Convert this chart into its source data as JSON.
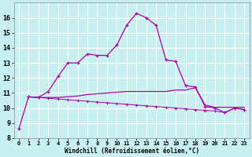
{
  "xlabel": "Windchill (Refroidissement éolien,°C)",
  "xlim": [
    -0.5,
    23.5
  ],
  "ylim": [
    8,
    17
  ],
  "background_color": "#c8f0f0",
  "line_color": "#aa00aa",
  "grid_color": "#aadddd",
  "series1_x": [
    0,
    1,
    2,
    3,
    4,
    5,
    6,
    7,
    8,
    9,
    10,
    11,
    12,
    13,
    14,
    15,
    16,
    17,
    18,
    19,
    20,
    21,
    22,
    23
  ],
  "series1_y": [
    8.6,
    10.75,
    10.7,
    11.1,
    12.1,
    13.0,
    13.0,
    13.6,
    13.5,
    13.5,
    14.2,
    15.5,
    16.3,
    16.0,
    15.5,
    13.2,
    13.1,
    11.5,
    11.4,
    10.1,
    10.0,
    9.7,
    10.0,
    9.9
  ],
  "series2_x": [
    1,
    2,
    3,
    4,
    5,
    6,
    7,
    8,
    9,
    10,
    11,
    12,
    13,
    14,
    15,
    16,
    17,
    18,
    19,
    20,
    21,
    22,
    23
  ],
  "series2_y": [
    10.75,
    10.7,
    10.7,
    10.7,
    10.75,
    10.8,
    10.9,
    10.95,
    11.0,
    11.05,
    11.1,
    11.1,
    11.1,
    11.1,
    11.1,
    11.2,
    11.2,
    11.35,
    10.2,
    10.05,
    10.05,
    10.05,
    10.05
  ],
  "series3_x": [
    1,
    2,
    3,
    4,
    5,
    6,
    7,
    8,
    9,
    10,
    11,
    12,
    13,
    14,
    15,
    16,
    17,
    18,
    19,
    20,
    21,
    22,
    23
  ],
  "series3_y": [
    10.75,
    10.7,
    10.65,
    10.6,
    10.55,
    10.5,
    10.45,
    10.4,
    10.35,
    10.3,
    10.25,
    10.2,
    10.15,
    10.1,
    10.05,
    10.0,
    9.95,
    9.9,
    9.85,
    9.8,
    9.7,
    10.0,
    9.9
  ],
  "xtick_vals": [
    0,
    1,
    2,
    3,
    4,
    5,
    6,
    7,
    8,
    9,
    10,
    11,
    12,
    13,
    14,
    15,
    16,
    17,
    18,
    19,
    20,
    21,
    22,
    23
  ],
  "xtick_labels": [
    "0",
    "1",
    "2",
    "3",
    "4",
    "5",
    "6",
    "7",
    "8",
    "9",
    "10",
    "11",
    "12",
    "13",
    "14",
    "15",
    "16",
    "17",
    "18",
    "19",
    "20",
    "21",
    "22",
    "23"
  ],
  "ytick_vals": [
    8,
    9,
    10,
    11,
    12,
    13,
    14,
    15,
    16
  ],
  "ytick_labels": [
    "8",
    "9",
    "10",
    "11",
    "12",
    "13",
    "14",
    "15",
    "16"
  ]
}
